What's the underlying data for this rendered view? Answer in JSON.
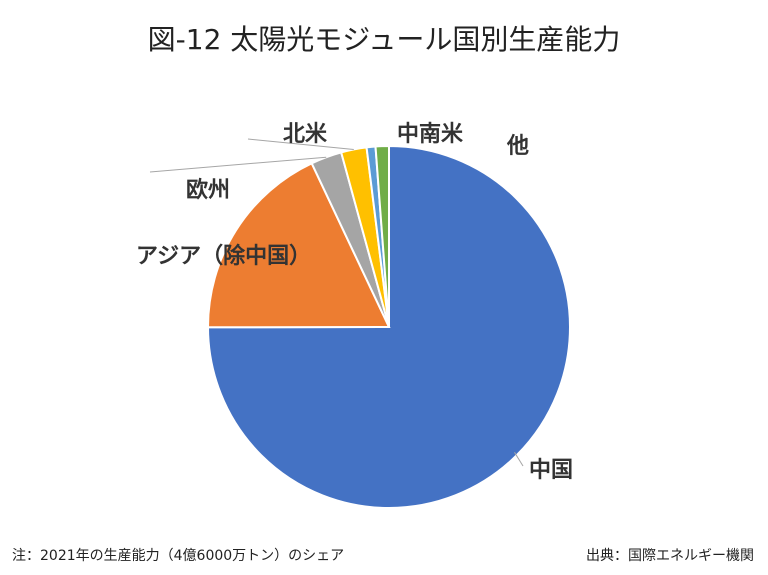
{
  "chart_data": {
    "type": "pie",
    "title": "図-12 太陽光モジュール国別生産能力",
    "categories": [
      "中国",
      "アジア（除中国）",
      "欧州",
      "北米",
      "中南米",
      "他"
    ],
    "values": [
      75.8,
      18.2,
      2.8,
      2.3,
      0.8,
      1.2
    ],
    "unit": "%",
    "colors": [
      "#4472C4",
      "#ED7D31",
      "#A5A5A5",
      "#FFC000",
      "#5B9BD5",
      "#70AD47"
    ],
    "start": "12 o'clock",
    "direction": "clockwise"
  },
  "footnote": {
    "left": "注：2021年の生産能力（4億6000万トン）のシェア",
    "right": "出典：国際エネルギー機関"
  }
}
